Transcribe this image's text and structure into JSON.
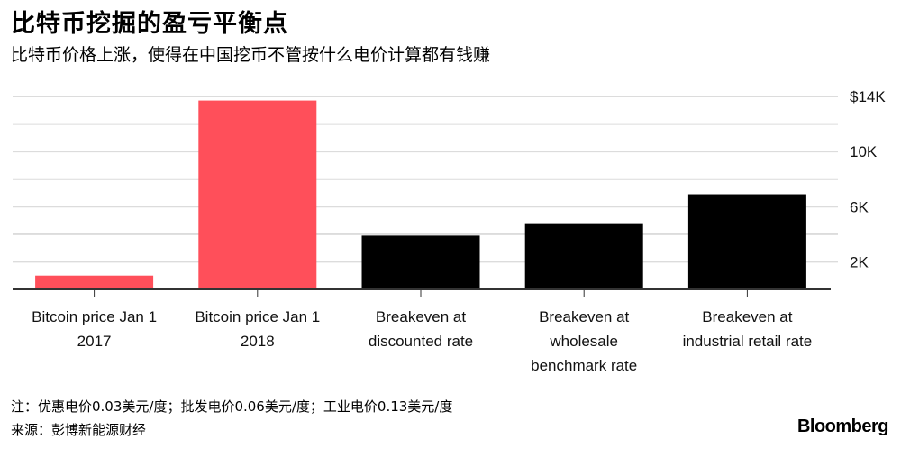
{
  "title": "比特币挖掘的盈亏平衡点",
  "subtitle": "比特币价格上涨，使得在中国挖币不管按什么电价计算都有钱赚",
  "note": "注：优惠电价0.03美元/度；批发电价0.06美元/度；工业电价0.13美元/度",
  "source": "来源：彭博新能源财经",
  "logo": "Bloomberg",
  "chart_data": {
    "type": "bar",
    "categories": [
      [
        "Bitcoin price Jan 1",
        "2017"
      ],
      [
        "Bitcoin price Jan 1",
        "2018"
      ],
      [
        "Breakeven at",
        "discounted rate"
      ],
      [
        "Breakeven at",
        "wholesale",
        "benchmark rate"
      ],
      [
        "Breakeven at",
        "industrial retail rate"
      ]
    ],
    "values": [
      1.0,
      13.7,
      3.9,
      4.8,
      6.9
    ],
    "colors": [
      "#ff4f5a",
      "#ff4f5a",
      "#000000",
      "#000000",
      "#000000"
    ],
    "unit": "thousand USD",
    "ylim": [
      0,
      14
    ],
    "gridlines": [
      2,
      4,
      6,
      8,
      10,
      12,
      14
    ],
    "yticks": [
      {
        "v": 2,
        "label": "2K"
      },
      {
        "v": 6,
        "label": "6K"
      },
      {
        "v": 10,
        "label": "10K"
      },
      {
        "v": 14,
        "label": "$14K"
      }
    ],
    "grid": true,
    "y_axis_side": "right"
  }
}
